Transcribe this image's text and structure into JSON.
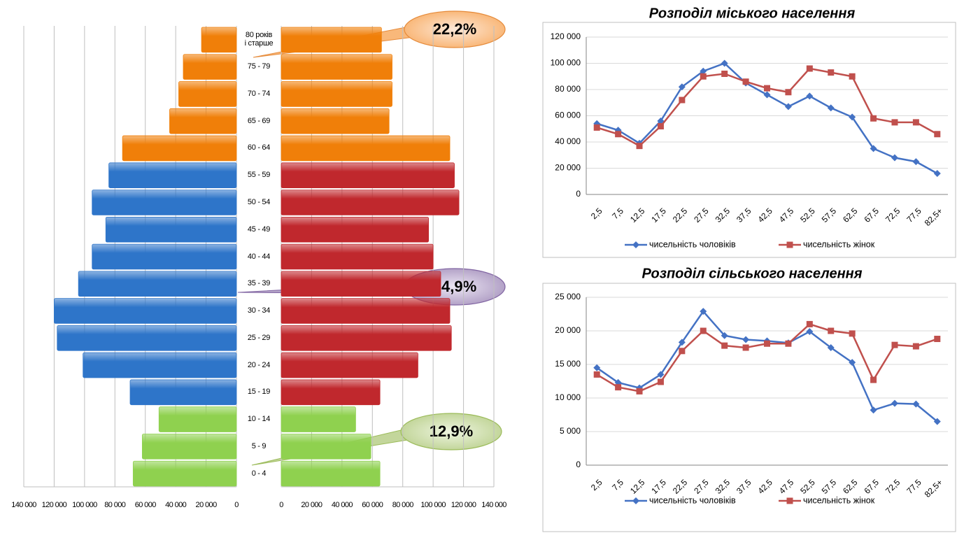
{
  "chart_data": [
    {
      "type": "pyramid",
      "categories": [
        "0 - 4",
        "5 - 9",
        "10 - 14",
        "15 - 19",
        "20 - 24",
        "25 - 29",
        "30 - 34",
        "35 - 39",
        "40 - 44",
        "45 - 49",
        "50 - 54",
        "55 - 59",
        "60 - 64",
        "65 - 69",
        "70 - 74",
        "75 - 79",
        "80 років\nі старше"
      ],
      "series": [
        {
          "values": [
            68000,
            62000,
            51000,
            70000,
            101000,
            118000,
            120000,
            104000,
            95000,
            86000,
            95000,
            84000,
            75000,
            44000,
            38000,
            35000,
            23000
          ],
          "colors": [
            "#8fd14f",
            "#8fd14f",
            "#8fd14f",
            "#2e75c9",
            "#2e75c9",
            "#2e75c9",
            "#2e75c9",
            "#2e75c9",
            "#2e75c9",
            "#2e75c9",
            "#2e75c9",
            "#2e75c9",
            "#f07f09",
            "#f07f09",
            "#f07f09",
            "#f07f09",
            "#f07f09"
          ],
          "xlim": [
            140000,
            0
          ],
          "xticks": [
            {
              "value": 140000,
              "label": "140 000"
            },
            {
              "value": 120000,
              "label": "120 000"
            },
            {
              "value": 100000,
              "label": "100 000"
            },
            {
              "value": 80000,
              "label": "80 000"
            },
            {
              "value": 60000,
              "label": "60 000"
            },
            {
              "value": 40000,
              "label": "40 000"
            },
            {
              "value": 20000,
              "label": "20 000"
            },
            0
          ]
        },
        {
          "values": [
            65000,
            59000,
            49000,
            65000,
            90000,
            112000,
            111000,
            105000,
            100000,
            97000,
            117000,
            114000,
            111000,
            71000,
            73000,
            73000,
            66000
          ],
          "colors": [
            "#8fd14f",
            "#8fd14f",
            "#8fd14f",
            "#c0282d",
            "#c0282d",
            "#c0282d",
            "#c0282d",
            "#c0282d",
            "#c0282d",
            "#c0282d",
            "#c0282d",
            "#c0282d",
            "#f07f09",
            "#f07f09",
            "#f07f09",
            "#f07f09",
            "#f07f09"
          ],
          "xlim": [
            0,
            140000
          ],
          "xticks": [
            0,
            {
              "value": 20000,
              "label": "20 000"
            },
            {
              "value": 40000,
              "label": "40 000"
            },
            {
              "value": 60000,
              "label": "60 000"
            },
            {
              "value": 80000,
              "label": "80 000"
            },
            {
              "value": 100000,
              "label": "100 000"
            },
            {
              "value": 120000,
              "label": "120 000"
            },
            {
              "value": 140000,
              "label": "140 000"
            }
          ]
        }
      ],
      "annotations": [
        "22,2%",
        "64,9%",
        "12,9%"
      ],
      "grid": true
    },
    {
      "type": "line",
      "title": "Розподіл міського населення",
      "categories": [
        "2,5",
        "7,5",
        "12,5",
        "17,5",
        "22,5",
        "27,5",
        "32,5",
        "37,5",
        "42,5",
        "47,5",
        "52,5",
        "57,5",
        "62,5",
        "67,5",
        "72,5",
        "77,5",
        "82,5+"
      ],
      "series": [
        {
          "name": "чисельність чоловіків",
          "color": "#4472c4",
          "marker": "diamond",
          "values": [
            54000,
            49000,
            39000,
            56000,
            82000,
            94000,
            100000,
            85000,
            76000,
            67000,
            75000,
            66000,
            59000,
            35000,
            28000,
            25000,
            16000
          ]
        },
        {
          "name": "чисельність жінок",
          "color": "#c0504d",
          "marker": "square",
          "values": [
            51000,
            46000,
            37000,
            52000,
            72000,
            90000,
            92000,
            86000,
            81000,
            78000,
            96000,
            93000,
            90000,
            58000,
            55000,
            55000,
            46000
          ]
        }
      ],
      "ylim": [
        0,
        120000
      ],
      "yticks": [
        0,
        {
          "value": 20000,
          "label": "20 000"
        },
        {
          "value": 40000,
          "label": "40 000"
        },
        {
          "value": 60000,
          "label": "60 000"
        },
        {
          "value": 80000,
          "label": "80 000"
        },
        {
          "value": 100000,
          "label": "100 000"
        },
        {
          "value": 120000,
          "label": "120 000"
        }
      ],
      "grid": true,
      "legend": "bottom"
    },
    {
      "type": "line",
      "title": "Розподіл сільського населення",
      "categories": [
        "2,5",
        "7,5",
        "12,5",
        "17,5",
        "22,5",
        "27,5",
        "32,5",
        "37,5",
        "42,5",
        "47,5",
        "52,5",
        "57,5",
        "62,5",
        "67,5",
        "72,5",
        "77,5",
        "82,5+"
      ],
      "series": [
        {
          "name": "чисельність чоловіків",
          "color": "#4472c4",
          "marker": "diamond",
          "values": [
            14500,
            12300,
            11500,
            13500,
            18300,
            22900,
            19300,
            18700,
            18500,
            18200,
            19900,
            17500,
            15300,
            8200,
            9200,
            9100,
            6500
          ]
        },
        {
          "name": "чисельність жінок",
          "color": "#c0504d",
          "marker": "square",
          "values": [
            13500,
            11600,
            11000,
            12400,
            17000,
            20000,
            17800,
            17500,
            18100,
            18100,
            21000,
            20000,
            19600,
            12700,
            17900,
            17700,
            18800
          ]
        }
      ],
      "ylim": [
        0,
        25000
      ],
      "yticks": [
        0,
        {
          "value": 5000,
          "label": "5 000"
        },
        {
          "value": 10000,
          "label": "10 000"
        },
        {
          "value": 15000,
          "label": "15 000"
        },
        {
          "value": 20000,
          "label": "20 000"
        },
        {
          "value": 25000,
          "label": "25 000"
        }
      ],
      "grid": true,
      "legend": "bottom"
    }
  ]
}
